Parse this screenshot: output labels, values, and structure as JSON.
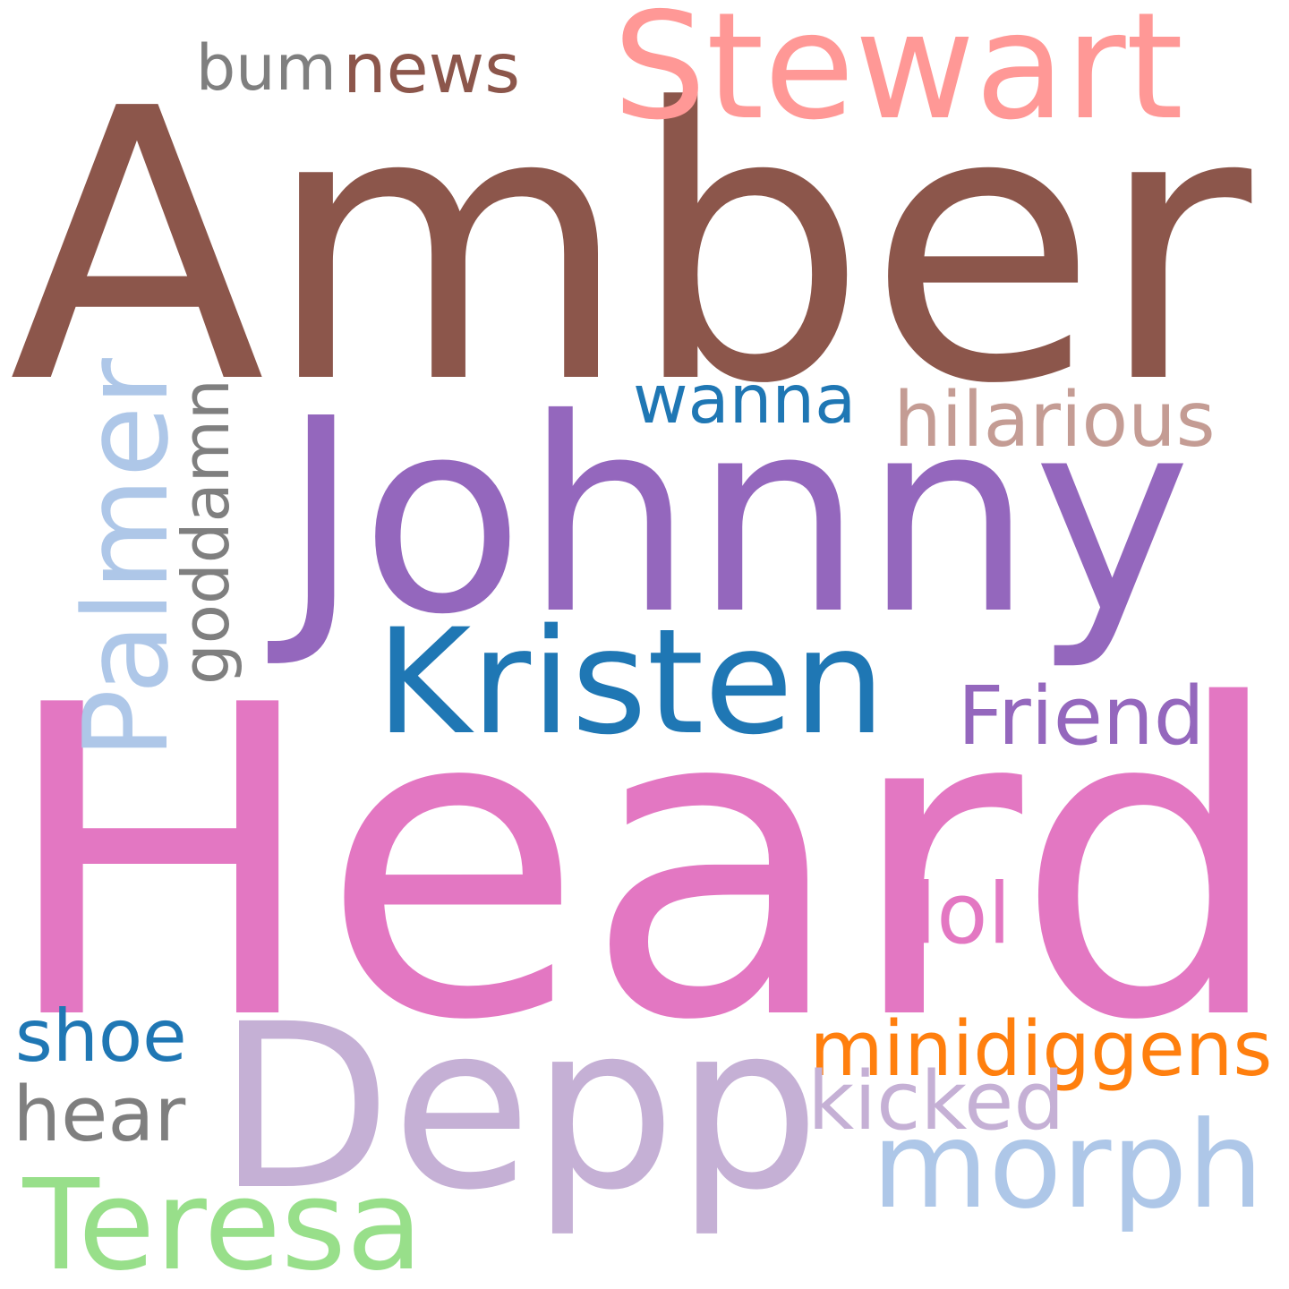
{
  "word_cloud": {
    "background": "#ffffff",
    "words": [
      {
        "id": "amber",
        "text": "Amber",
        "color": "#8c564b",
        "orientation": "horizontal"
      },
      {
        "id": "heard",
        "text": "Heard",
        "color": "#e377c2",
        "orientation": "horizontal"
      },
      {
        "id": "johnny",
        "text": "Johnny",
        "color": "#9467bd",
        "orientation": "horizontal"
      },
      {
        "id": "depp",
        "text": "Depp",
        "color": "#c5b0d5",
        "orientation": "horizontal"
      },
      {
        "id": "stewart",
        "text": "Stewart",
        "color": "#ff9896",
        "orientation": "horizontal"
      },
      {
        "id": "kristen",
        "text": "Kristen",
        "color": "#1f77b4",
        "orientation": "horizontal"
      },
      {
        "id": "palmer",
        "text": "Palmer",
        "color": "#aec7e8",
        "orientation": "vertical"
      },
      {
        "id": "goddamn",
        "text": "goddamn",
        "color": "#7f7f7f",
        "orientation": "vertical"
      },
      {
        "id": "morph",
        "text": "morph",
        "color": "#aec7e8",
        "orientation": "horizontal"
      },
      {
        "id": "teresa",
        "text": "Teresa",
        "color": "#98df8a",
        "orientation": "horizontal"
      },
      {
        "id": "minidiggens",
        "text": "minidiggens",
        "color": "#ff7f0e",
        "orientation": "horizontal"
      },
      {
        "id": "hilarious",
        "text": "hilarious",
        "color": "#c49c94",
        "orientation": "horizontal"
      },
      {
        "id": "friend",
        "text": "Friend",
        "color": "#9467bd",
        "orientation": "horizontal"
      },
      {
        "id": "wanna",
        "text": "wanna",
        "color": "#1f77b4",
        "orientation": "horizontal"
      },
      {
        "id": "news",
        "text": "news",
        "color": "#8c564b",
        "orientation": "horizontal"
      },
      {
        "id": "bum",
        "text": "bum",
        "color": "#7f7f7f",
        "orientation": "horizontal"
      },
      {
        "id": "shoe",
        "text": "shoe",
        "color": "#1f77b4",
        "orientation": "horizontal"
      },
      {
        "id": "hear",
        "text": "hear",
        "color": "#7f7f7f",
        "orientation": "horizontal"
      },
      {
        "id": "kicked",
        "text": "kicked",
        "color": "#c5b0d5",
        "orientation": "horizontal"
      },
      {
        "id": "lol",
        "text": "lol",
        "color": "#e377c2",
        "orientation": "horizontal"
      }
    ]
  }
}
